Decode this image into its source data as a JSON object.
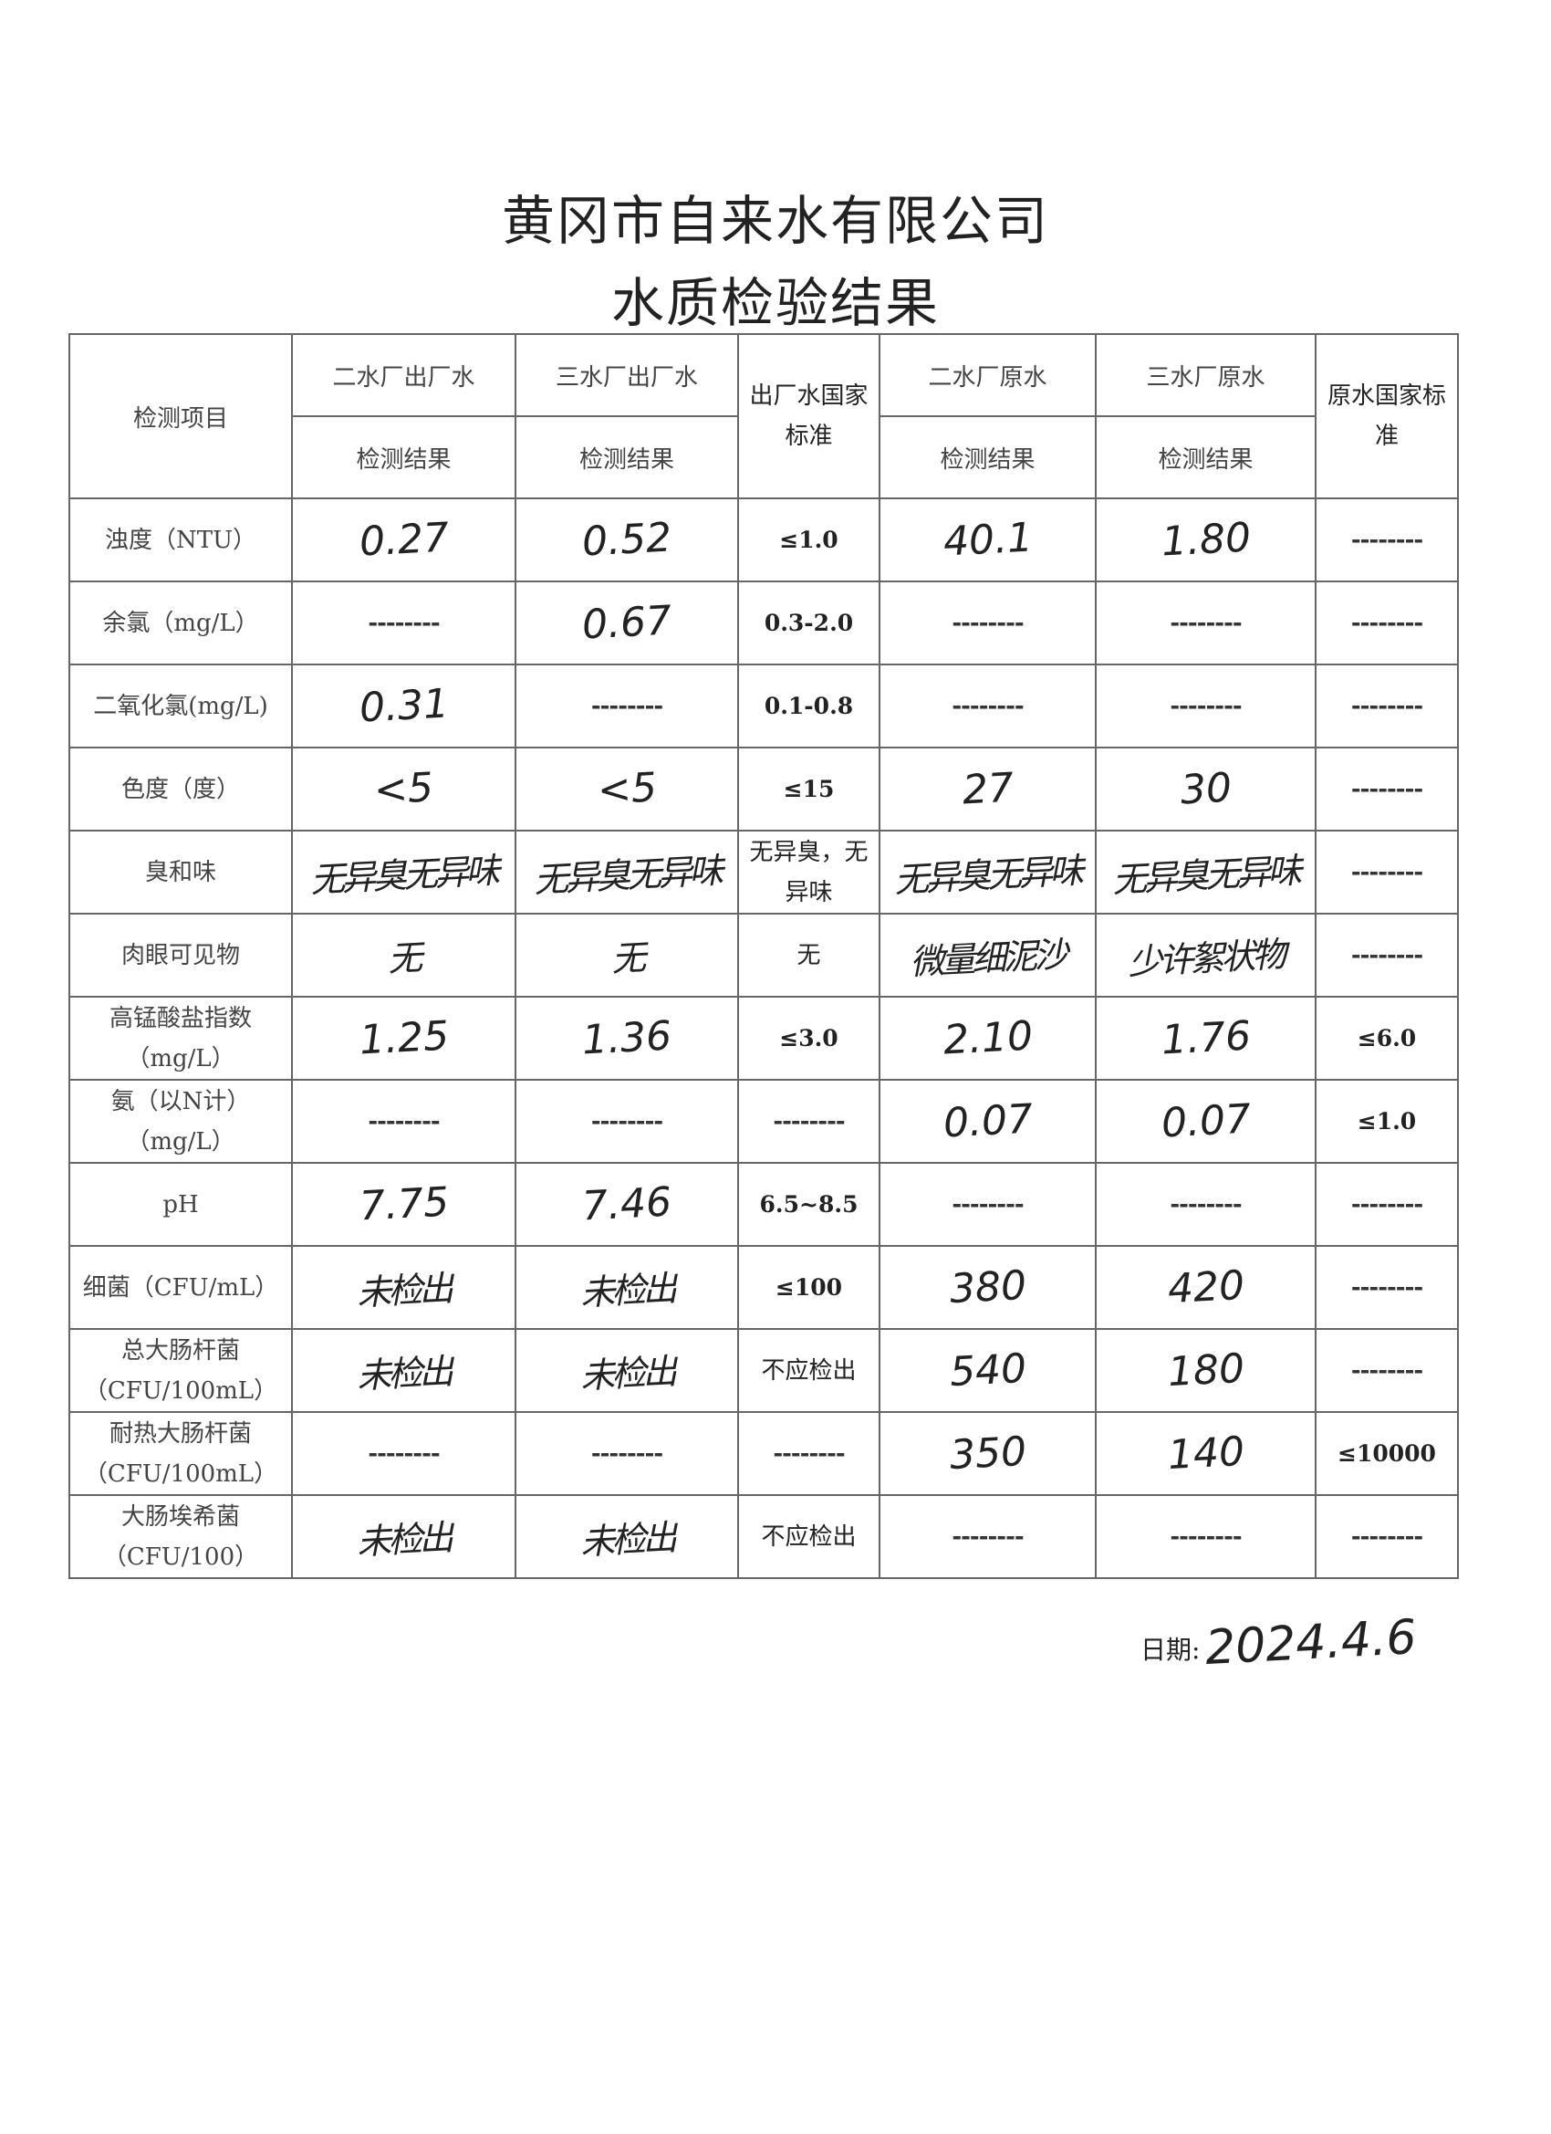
{
  "title": {
    "line1": "黄冈市自来水有限公司",
    "line2": "水质检验结果"
  },
  "header": {
    "item": "检测项目",
    "col1": "二水厂出厂水",
    "col2": "三水厂出厂水",
    "std_out": "出厂水国家标准",
    "col3": "二水厂原水",
    "col4": "三水厂原水",
    "std_raw": "原水国家标准",
    "result": "检测结果"
  },
  "rows": [
    {
      "item": "浊度（NTU）",
      "c1": "0.27",
      "c2": "0.52",
      "std_out": "≤1.0",
      "c3": "40.1",
      "c4": "1.80",
      "std_raw": "--------"
    },
    {
      "item": "余氯（mg/L）",
      "c1": "--------",
      "c2": "0.67",
      "std_out": "0.3-2.0",
      "c3": "--------",
      "c4": "--------",
      "std_raw": "--------"
    },
    {
      "item": "二氧化氯(mg/L)",
      "c1": "0.31",
      "c2": "--------",
      "std_out": "0.1-0.8",
      "c3": "--------",
      "c4": "--------",
      "std_raw": "--------"
    },
    {
      "item": "色度（度）",
      "c1": "<5",
      "c2": "<5",
      "std_out": "≤15",
      "c3": "27",
      "c4": "30",
      "std_raw": "--------"
    },
    {
      "item": "臭和味",
      "c1": "无异臭无异味",
      "c2": "无异臭无异味",
      "std_out": "无异臭，无异味",
      "c3": "无异臭无异味",
      "c4": "无异臭无异味",
      "std_raw": "--------"
    },
    {
      "item": "肉眼可见物",
      "c1": "无",
      "c2": "无",
      "std_out": "无",
      "c3": "微量细泥沙",
      "c4": "少许絮状物",
      "std_raw": "--------"
    },
    {
      "item": "高锰酸盐指数（mg/L）",
      "c1": "1.25",
      "c2": "1.36",
      "std_out": "≤3.0",
      "c3": "2.10",
      "c4": "1.76",
      "std_raw": "≤6.0"
    },
    {
      "item": "氨（以N计）（mg/L）",
      "c1": "--------",
      "c2": "--------",
      "std_out": "--------",
      "c3": "0.07",
      "c4": "0.07",
      "std_raw": "≤1.0"
    },
    {
      "item": "pH",
      "c1": "7.75",
      "c2": "7.46",
      "std_out": "6.5~8.5",
      "c3": "--------",
      "c4": "--------",
      "std_raw": "--------"
    },
    {
      "item": "细菌（CFU/mL）",
      "c1": "未检出",
      "c2": "未检出",
      "std_out": "≤100",
      "c3": "380",
      "c4": "420",
      "std_raw": "--------"
    },
    {
      "item": "总大肠杆菌（CFU/100mL）",
      "c1": "未检出",
      "c2": "未检出",
      "std_out": "不应检出",
      "c3": "540",
      "c4": "180",
      "std_raw": "--------"
    },
    {
      "item": "耐热大肠杆菌（CFU/100mL）",
      "c1": "--------",
      "c2": "--------",
      "std_out": "--------",
      "c3": "350",
      "c4": "140",
      "std_raw": "≤10000"
    },
    {
      "item": "大肠埃希菌（CFU/100）",
      "c1": "未检出",
      "c2": "未检出",
      "std_out": "不应检出",
      "c3": "--------",
      "c4": "--------",
      "std_raw": "--------"
    }
  ],
  "date": {
    "label": "日期:",
    "value": "2024.4.6"
  }
}
